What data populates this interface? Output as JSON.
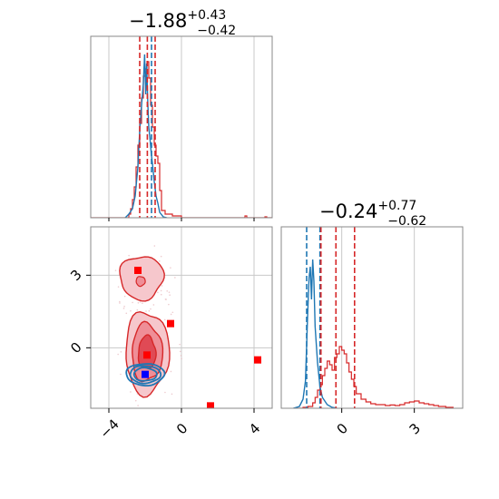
{
  "chart_data": {
    "type": "corner",
    "colors": {
      "red": "#d62728",
      "blue": "#1f77b4",
      "marker_red": "#ff0000",
      "marker_blue": "#0000ff",
      "grid": "#c8c8c8"
    },
    "panels": [
      {
        "id": "hist-param1",
        "type": "histogram",
        "title": {
          "main": "−1.88",
          "sup": "+0.43",
          "sub": "−0.42"
        },
        "xlim": [
          -5,
          5
        ],
        "ylim": [
          0,
          1
        ],
        "grid_x": [
          -4,
          0,
          4
        ],
        "red_lines": [
          -2.3,
          -1.88,
          -1.45
        ],
        "blue_lines": [
          -1.65
        ],
        "red_steps": [
          [
            -5.0,
            0
          ],
          [
            -3.0,
            0
          ],
          [
            -2.9,
            0.02
          ],
          [
            -2.8,
            0.05
          ],
          [
            -2.7,
            0.1
          ],
          [
            -2.6,
            0.17
          ],
          [
            -2.5,
            0.28
          ],
          [
            -2.4,
            0.4
          ],
          [
            -2.3,
            0.52
          ],
          [
            -2.2,
            0.66
          ],
          [
            -2.1,
            0.78
          ],
          [
            -2.0,
            0.82
          ],
          [
            -1.9,
            0.86
          ],
          [
            -1.8,
            0.77
          ],
          [
            -1.7,
            0.62
          ],
          [
            -1.6,
            0.5
          ],
          [
            -1.5,
            0.4
          ],
          [
            -1.4,
            0.34
          ],
          [
            -1.3,
            0.3
          ],
          [
            -1.2,
            0.15
          ],
          [
            -1.1,
            0.04
          ],
          [
            -0.9,
            0.02
          ],
          [
            -0.5,
            0.01
          ],
          [
            0.0,
            0
          ],
          [
            3.5,
            0.01
          ],
          [
            3.6,
            0
          ],
          [
            4.6,
            0.005
          ],
          [
            4.7,
            0
          ],
          [
            5.0,
            0
          ]
        ],
        "blue_curve": [
          [
            -3.1,
            0
          ],
          [
            -2.9,
            0.02
          ],
          [
            -2.7,
            0.05
          ],
          [
            -2.55,
            0.12
          ],
          [
            -2.4,
            0.28
          ],
          [
            -2.3,
            0.48
          ],
          [
            -2.2,
            0.62
          ],
          [
            -2.1,
            0.74
          ],
          [
            -2.03,
            0.9
          ],
          [
            -1.97,
            0.68
          ],
          [
            -1.92,
            0.85
          ],
          [
            -1.85,
            0.62
          ],
          [
            -1.8,
            0.5
          ],
          [
            -1.72,
            0.42
          ],
          [
            -1.66,
            0.35
          ],
          [
            -1.6,
            0.3
          ],
          [
            -1.5,
            0.2
          ],
          [
            -1.4,
            0.12
          ],
          [
            -1.3,
            0.08
          ],
          [
            -1.2,
            0.03
          ],
          [
            -1.0,
            0.005
          ],
          [
            -0.8,
            0
          ]
        ]
      },
      {
        "id": "hist-param2",
        "type": "histogram",
        "title": {
          "main": "−0.24",
          "sup": "+0.77",
          "sub": "−0.62"
        },
        "xlim": [
          -2.5,
          5.0
        ],
        "ylim": [
          0,
          1
        ],
        "grid_x": [
          0,
          3
        ],
        "x_ticks": [
          0,
          3
        ],
        "red_lines": [
          -0.86,
          -0.24,
          0.53
        ],
        "blue_lines": [
          -1.45,
          -0.9
        ],
        "red_steps": [
          [
            -2.0,
            0
          ],
          [
            -1.6,
            0.005
          ],
          [
            -1.4,
            0.01
          ],
          [
            -1.2,
            0.03
          ],
          [
            -1.1,
            0.06
          ],
          [
            -1.0,
            0.1
          ],
          [
            -0.9,
            0.13
          ],
          [
            -0.8,
            0.18
          ],
          [
            -0.7,
            0.22
          ],
          [
            -0.6,
            0.26
          ],
          [
            -0.5,
            0.24
          ],
          [
            -0.4,
            0.21
          ],
          [
            -0.3,
            0.28
          ],
          [
            -0.2,
            0.3
          ],
          [
            -0.1,
            0.34
          ],
          [
            0.0,
            0.32
          ],
          [
            0.1,
            0.3
          ],
          [
            0.2,
            0.25
          ],
          [
            0.3,
            0.2
          ],
          [
            0.4,
            0.16
          ],
          [
            0.5,
            0.12
          ],
          [
            0.6,
            0.08
          ],
          [
            0.8,
            0.05
          ],
          [
            1.0,
            0.035
          ],
          [
            1.2,
            0.025
          ],
          [
            1.4,
            0.02
          ],
          [
            1.6,
            0.02
          ],
          [
            1.8,
            0.015
          ],
          [
            2.0,
            0.018
          ],
          [
            2.2,
            0.015
          ],
          [
            2.4,
            0.02
          ],
          [
            2.6,
            0.03
          ],
          [
            2.8,
            0.035
          ],
          [
            3.0,
            0.04
          ],
          [
            3.2,
            0.03
          ],
          [
            3.4,
            0.025
          ],
          [
            3.6,
            0.02
          ],
          [
            3.8,
            0.015
          ],
          [
            4.0,
            0.01
          ],
          [
            4.3,
            0.005
          ],
          [
            4.6,
            0
          ]
        ],
        "blue_curve": [
          [
            -2.0,
            0
          ],
          [
            -1.75,
            0.01
          ],
          [
            -1.6,
            0.05
          ],
          [
            -1.5,
            0.15
          ],
          [
            -1.45,
            0.35
          ],
          [
            -1.4,
            0.55
          ],
          [
            -1.35,
            0.72
          ],
          [
            -1.3,
            0.78
          ],
          [
            -1.25,
            0.6
          ],
          [
            -1.2,
            0.82
          ],
          [
            -1.15,
            0.7
          ],
          [
            -1.1,
            0.45
          ],
          [
            -1.0,
            0.25
          ],
          [
            -0.9,
            0.12
          ],
          [
            -0.8,
            0.06
          ],
          [
            -0.6,
            0.02
          ],
          [
            -0.4,
            0.005
          ],
          [
            -0.2,
            0
          ]
        ]
      },
      {
        "id": "scatter-2d",
        "type": "contour",
        "xlim": [
          -5,
          5
        ],
        "ylim": [
          -2.5,
          5.0
        ],
        "x_ticks": [
          -4,
          0,
          4
        ],
        "y_ticks": [
          0,
          3
        ],
        "grid_x": [
          -4,
          0,
          4
        ],
        "grid_y": [
          0,
          3
        ],
        "red_lobes": [
          {
            "cx": -2.2,
            "cy": 2.9,
            "rx": 1.2,
            "ry": 0.9,
            "levels": 1
          },
          {
            "cx": -1.9,
            "cy": -0.2,
            "rx": 1.2,
            "ry": 1.7,
            "levels": 3
          }
        ],
        "blue_ellipse": {
          "cx": -2.0,
          "cy": -1.1,
          "rx": 1.05,
          "ry": 0.45
        },
        "red_markers": [
          [
            -2.4,
            3.2
          ],
          [
            -0.6,
            1.0
          ],
          [
            -1.9,
            -0.3
          ],
          [
            4.2,
            -0.5
          ],
          [
            1.6,
            -2.4
          ]
        ],
        "blue_markers": [
          [
            -2.0,
            -1.1
          ]
        ]
      }
    ]
  }
}
